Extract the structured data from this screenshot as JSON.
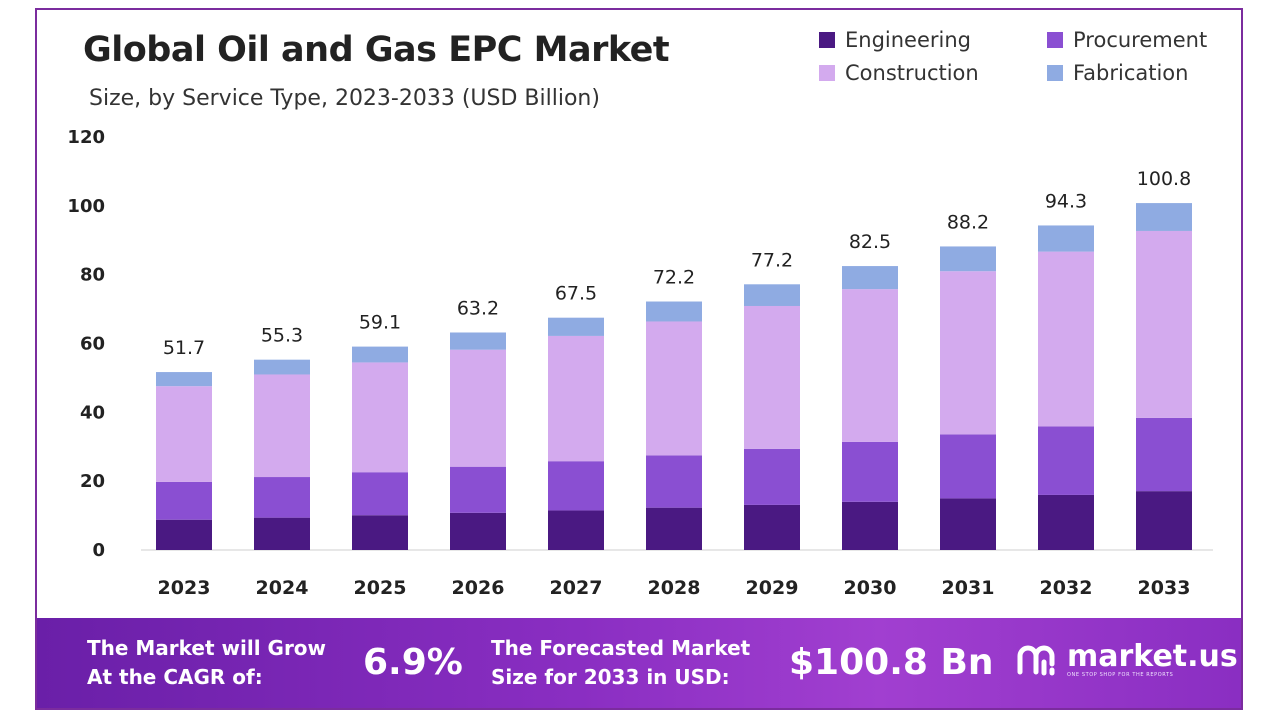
{
  "title": "Global Oil and Gas EPC Market",
  "subtitle": "Size, by Service Type, 2023-2033 (USD Billion)",
  "colors": {
    "Engineering": "#4a1982",
    "Procurement": "#8a4fd2",
    "Construction": "#d3aaee",
    "Fabrication": "#8fabe2"
  },
  "chart_data": {
    "type": "bar",
    "stacked": true,
    "categories": [
      "2023",
      "2024",
      "2025",
      "2026",
      "2027",
      "2028",
      "2029",
      "2030",
      "2031",
      "2032",
      "2033"
    ],
    "series": [
      {
        "name": "Engineering",
        "values": [
          8.8,
          9.4,
          10.1,
          10.8,
          11.5,
          12.3,
          13.1,
          14.0,
          15.0,
          16.0,
          17.1
        ]
      },
      {
        "name": "Procurement",
        "values": [
          11.0,
          11.8,
          12.5,
          13.4,
          14.3,
          15.2,
          16.3,
          17.4,
          18.6,
          19.9,
          21.3
        ]
      },
      {
        "name": "Construction",
        "values": [
          27.8,
          29.8,
          31.9,
          34.0,
          36.4,
          38.9,
          41.5,
          44.4,
          47.4,
          50.8,
          54.3
        ]
      },
      {
        "name": "Fabrication",
        "values": [
          4.1,
          4.3,
          4.6,
          5.0,
          5.3,
          5.8,
          6.3,
          6.7,
          7.2,
          7.6,
          8.1
        ]
      }
    ],
    "totals": [
      "51.7",
      "55.3",
      "59.1",
      "63.2",
      "67.5",
      "72.2",
      "77.2",
      "82.5",
      "88.2",
      "94.3",
      "100.8"
    ],
    "yticks": [
      0,
      20,
      40,
      60,
      80,
      100,
      120
    ],
    "ylim": [
      0,
      120
    ],
    "grid": false,
    "legend": "top-right"
  },
  "banner": {
    "cagr_text_1": "The Market will Grow",
    "cagr_text_2": "At the CAGR of:",
    "cagr_value": "6.9%",
    "forecast_text_1": "The Forecasted Market",
    "forecast_text_2": "Size for 2033 in USD:",
    "forecast_value": "$100.8 Bn"
  },
  "logo": {
    "name": "market.us",
    "tagline": "ONE STOP SHOP FOR THE REPORTS"
  }
}
